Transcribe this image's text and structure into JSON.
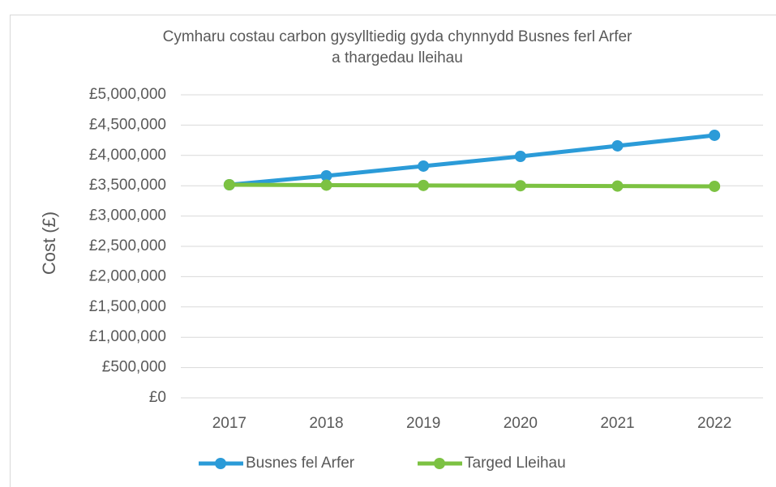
{
  "chart_data": {
    "type": "line",
    "title": "Cymharu costau carbon gysylltiedig gyda chynnydd Busnes ferl Arfer",
    "subtitle": "a thargedau lleihau",
    "y_label": "Cost (£)",
    "categories": [
      "2017",
      "2018",
      "2019",
      "2020",
      "2021",
      "2022"
    ],
    "series": [
      {
        "name": "Busnes fel Arfer",
        "color": "#2b9bd8",
        "values": [
          3516000,
          3663000,
          3824000,
          3984000,
          4158000,
          4332000
        ]
      },
      {
        "name": "Targed Lleihau",
        "color": "#7cc242",
        "values": [
          3516000,
          3510000,
          3505000,
          3500000,
          3495000,
          3490000
        ]
      }
    ],
    "ylim": [
      0,
      5000000
    ],
    "yticks": [
      {
        "value": 0,
        "label": "£0"
      },
      {
        "value": 500000,
        "label": "£500,000"
      },
      {
        "value": 1000000,
        "label": "£1,000,000"
      },
      {
        "value": 1500000,
        "label": "£1,500,000"
      },
      {
        "value": 2000000,
        "label": "£2,000,000"
      },
      {
        "value": 2500000,
        "label": "£2,500,000"
      },
      {
        "value": 3000000,
        "label": "£3,000,000"
      },
      {
        "value": 3500000,
        "label": "£3,500,000"
      },
      {
        "value": 4000000,
        "label": "£4,000,000"
      },
      {
        "value": 4500000,
        "label": "£4,500,000"
      },
      {
        "value": 5000000,
        "label": "£5,000,000"
      }
    ],
    "grid": true,
    "legend": "bottom"
  }
}
